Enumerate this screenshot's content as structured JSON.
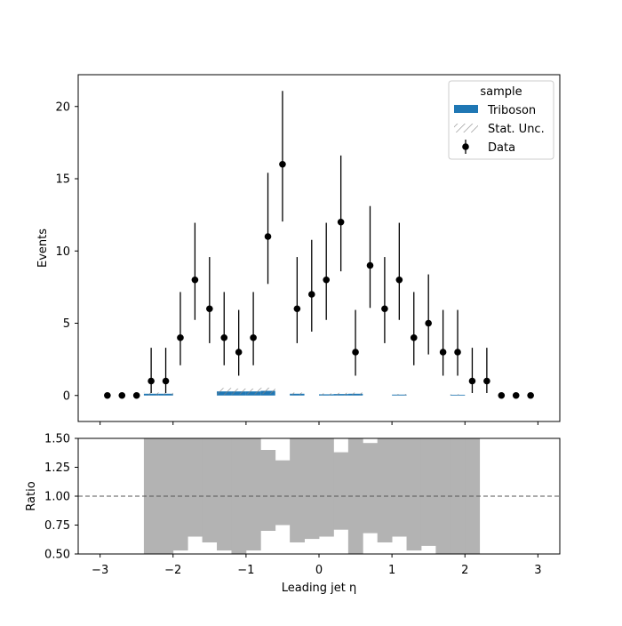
{
  "chart_data": [
    {
      "type": "bar",
      "panel": "main",
      "xlabel": "",
      "ylabel": "Events",
      "xlim": [
        -3.3,
        3.3
      ],
      "ylim": [
        -1.8,
        22.2
      ],
      "yticks": [
        0,
        5,
        10,
        15,
        20
      ],
      "ytick_labels": [
        "0",
        "5",
        "10",
        "15",
        "20"
      ],
      "bin_edges": [
        -3.0,
        -2.8,
        -2.6,
        -2.4,
        -2.2,
        -2.0,
        -1.8,
        -1.6,
        -1.4,
        -1.2,
        -1.0,
        -0.8,
        -0.6,
        -0.4,
        -0.2,
        0.0,
        0.2,
        0.4,
        0.6,
        0.8,
        1.0,
        1.2,
        1.4,
        1.6,
        1.8,
        2.0,
        2.2,
        2.4,
        2.6,
        2.8,
        3.0
      ],
      "series": [
        {
          "name": "Triboson",
          "kind": "stacked-hist",
          "color": "#1f77b4",
          "values": [
            0,
            0,
            0,
            0.12,
            0.12,
            0,
            0,
            0,
            0.28,
            0.28,
            0.28,
            0.32,
            0,
            0.12,
            0,
            0.08,
            0.1,
            0.12,
            0,
            0,
            0.06,
            0,
            0,
            0,
            0.05,
            0,
            0,
            0,
            0,
            0
          ]
        },
        {
          "name": "Stat. Unc.",
          "kind": "hatch-band",
          "color": "#808080",
          "values": [
            0,
            0,
            0,
            0.12,
            0.08,
            0,
            0,
            0,
            0.24,
            0.2,
            0.2,
            0.22,
            0,
            0.08,
            0,
            0.06,
            0.08,
            0.08,
            0,
            0,
            0.04,
            0,
            0,
            0,
            0.04,
            0,
            0,
            0,
            0,
            0
          ]
        },
        {
          "name": "Data",
          "kind": "errorbar-points",
          "color": "#000000",
          "x": [
            -2.9,
            -2.7,
            -2.5,
            -2.3,
            -2.1,
            -1.9,
            -1.7,
            -1.5,
            -1.3,
            -1.1,
            -0.9,
            -0.7,
            -0.5,
            -0.3,
            -0.1,
            0.1,
            0.3,
            0.5,
            0.7,
            0.9,
            1.1,
            1.3,
            1.5,
            1.7,
            1.9,
            2.1,
            2.3,
            2.5,
            2.7,
            2.9
          ],
          "y": [
            0,
            0,
            0,
            1,
            1,
            4,
            8,
            6,
            4,
            3,
            4,
            11,
            16,
            6,
            7,
            8,
            12,
            3,
            9,
            6,
            8,
            4,
            5,
            3,
            3,
            1,
            1,
            0,
            0,
            0
          ],
          "yerr_low": [
            0,
            0,
            0,
            0.83,
            0.83,
            1.91,
            2.77,
            2.38,
            1.91,
            1.63,
            1.91,
            3.28,
            3.96,
            2.38,
            2.58,
            2.77,
            3.41,
            1.63,
            2.94,
            2.38,
            2.77,
            1.91,
            2.16,
            1.63,
            1.63,
            0.83,
            0.83,
            0,
            0,
            0
          ],
          "yerr_high": [
            0,
            0,
            0,
            2.3,
            2.3,
            3.16,
            3.95,
            3.58,
            3.16,
            2.92,
            3.16,
            4.41,
            5.08,
            3.58,
            3.77,
            3.95,
            4.61,
            2.92,
            4.11,
            3.58,
            3.95,
            3.16,
            3.38,
            2.92,
            2.92,
            2.3,
            2.3,
            0,
            0,
            0
          ]
        }
      ],
      "legend": {
        "title": "sample",
        "placement": "top-right",
        "entries": [
          "Triboson",
          "Stat. Unc.",
          "Data"
        ]
      }
    },
    {
      "type": "bar",
      "panel": "ratio",
      "xlabel": "Leading jet  η",
      "ylabel": "Ratio",
      "xlim": [
        -3.3,
        3.3
      ],
      "ylim": [
        0.5,
        1.5
      ],
      "xticks": [
        -3,
        -2,
        -1,
        0,
        1,
        2,
        3
      ],
      "xtick_labels": [
        "−3",
        "−2",
        "−1",
        "0",
        "1",
        "2",
        "3"
      ],
      "yticks": [
        0.5,
        0.75,
        1.0,
        1.25,
        1.5
      ],
      "ytick_labels": [
        "0.50",
        "0.75",
        "1.00",
        "1.25",
        "1.50"
      ],
      "reference_line": 1.0,
      "reference_style": "dashed",
      "band_color": "#b3b3b3",
      "bin_edges": [
        -2.4,
        -2.2,
        -2.0,
        -1.8,
        -1.6,
        -1.4,
        -1.2,
        -1.0,
        -0.8,
        -0.6,
        -0.4,
        -0.2,
        0.0,
        0.2,
        0.4,
        0.6,
        0.8,
        1.0,
        1.2,
        1.4,
        1.6,
        1.8,
        2.0,
        2.2
      ],
      "band_low": [
        0.5,
        0.5,
        0.53,
        0.65,
        0.6,
        0.53,
        0.5,
        0.53,
        0.7,
        0.75,
        0.6,
        0.63,
        0.65,
        0.71,
        0.5,
        0.68,
        0.6,
        0.65,
        0.53,
        0.57,
        0.5,
        0.5,
        0.5
      ],
      "band_high": [
        1.5,
        1.5,
        1.5,
        1.5,
        1.5,
        1.5,
        1.5,
        1.5,
        1.4,
        1.31,
        1.5,
        1.5,
        1.5,
        1.38,
        1.5,
        1.46,
        1.5,
        1.5,
        1.5,
        1.5,
        1.5,
        1.5,
        1.5
      ]
    }
  ]
}
